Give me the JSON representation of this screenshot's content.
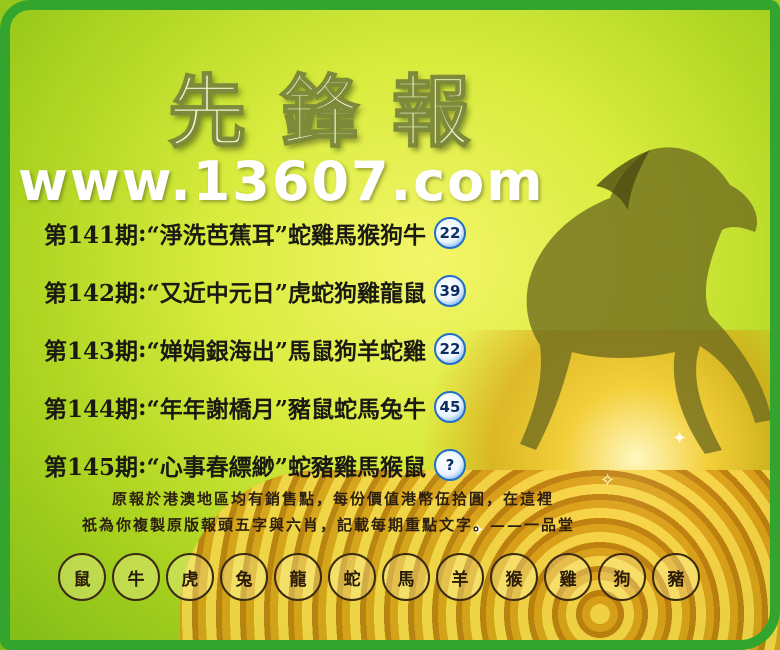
{
  "title": "先鋒報",
  "website": "www.13607.com",
  "rows": [
    {
      "period": "第141期",
      "phrase": "“淨洗芭蕉耳”",
      "zodiacs": "蛇雞馬猴狗牛",
      "number": "22"
    },
    {
      "period": "第142期",
      "phrase": "“又近中元日”",
      "zodiacs": "虎蛇狗雞龍鼠",
      "number": "39"
    },
    {
      "period": "第143期",
      "phrase": "“婵娟銀海出”",
      "zodiacs": "馬鼠狗羊蛇雞",
      "number": "22"
    },
    {
      "period": "第144期",
      "phrase": "“年年謝橋月”",
      "zodiacs": "豬鼠蛇馬兔牛",
      "number": "45"
    },
    {
      "period": "第145期",
      "phrase": "“心事春縹緲”",
      "zodiacs": "蛇豬雞馬猴鼠",
      "number": "?"
    }
  ],
  "notes": {
    "line1": "原報於港澳地區均有銷售點，每份價值港幣伍拾圓，在這裡",
    "line2": "祇為你複製原版報頭五字與六肖，記載每期重點文字。——一品堂"
  },
  "zodiac_circles": [
    "鼠",
    "牛",
    "虎",
    "兔",
    "龍",
    "蛇",
    "馬",
    "羊",
    "猴",
    "雞",
    "狗",
    "豬"
  ]
}
